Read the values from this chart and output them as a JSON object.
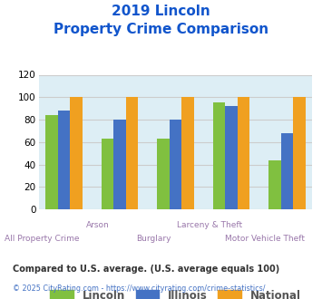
{
  "title_line1": "2019 Lincoln",
  "title_line2": "Property Crime Comparison",
  "categories": [
    "All Property Crime",
    "Arson",
    "Burglary",
    "Larceny & Theft",
    "Motor Vehicle Theft"
  ],
  "lincoln": [
    84,
    63,
    63,
    95,
    44
  ],
  "illinois": [
    88,
    80,
    80,
    92,
    68
  ],
  "national": [
    100,
    100,
    100,
    100,
    100
  ],
  "lincoln_color": "#80c040",
  "illinois_color": "#4472c4",
  "national_color": "#f0a020",
  "ylim": [
    0,
    120
  ],
  "yticks": [
    0,
    20,
    40,
    60,
    80,
    100,
    120
  ],
  "grid_color": "#cccccc",
  "bg_color": "#ddeef5",
  "title_color": "#1155cc",
  "xlabel_color": "#9977aa",
  "legend_labels": [
    "Lincoln",
    "Illinois",
    "National"
  ],
  "footnote1": "Compared to U.S. average. (U.S. average equals 100)",
  "footnote2": "© 2025 CityRating.com - https://www.cityrating.com/crime-statistics/",
  "footnote1_color": "#333333",
  "footnote2_color": "#4472c4",
  "bar_width": 0.22
}
